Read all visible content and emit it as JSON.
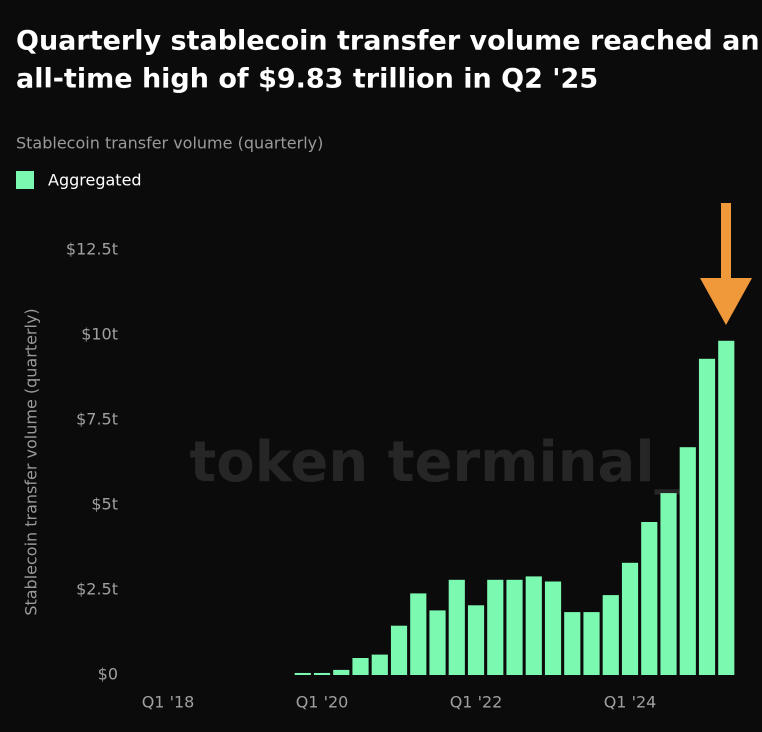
{
  "chart_data": {
    "type": "bar",
    "title": [
      "Quarterly stablecoin transfer volume reached an",
      "all-time high of $9.83 trillion in Q2 '25"
    ],
    "subtitle": "Stablecoin transfer volume (quarterly)",
    "y_label": "Stablecoin transfer volume (quarterly)",
    "watermark": "token terminal_",
    "categories": [
      "Q1 '18",
      null,
      null,
      null,
      null,
      null,
      null,
      null,
      "Q1 '20",
      null,
      null,
      null,
      null,
      null,
      null,
      null,
      "Q1 '22",
      null,
      null,
      null,
      null,
      null,
      null,
      null,
      "Q1 '24",
      null,
      null,
      null,
      null,
      null
    ],
    "series": [
      {
        "name": "Aggregated",
        "color": "#7cf9b0",
        "values": [
          0,
          0,
          0,
          0,
          0,
          0,
          0,
          0.06,
          0.06,
          0.15,
          0.5,
          0.6,
          1.45,
          2.4,
          1.9,
          2.8,
          2.05,
          2.8,
          2.8,
          2.9,
          2.75,
          1.85,
          1.85,
          2.35,
          3.3,
          4.5,
          5.35,
          6.7,
          9.3,
          9.83
        ]
      }
    ],
    "ylim": [
      0,
      12.5
    ],
    "yticks": [
      {
        "value": 0,
        "label": "$0"
      },
      {
        "value": 2.5,
        "label": "$2.5t"
      },
      {
        "value": 5,
        "label": "$5t"
      },
      {
        "value": 7.5,
        "label": "$7.5t"
      },
      {
        "value": 10,
        "label": "$10t"
      },
      {
        "value": 12.5,
        "label": "$12.5t"
      }
    ],
    "grid": false
  }
}
